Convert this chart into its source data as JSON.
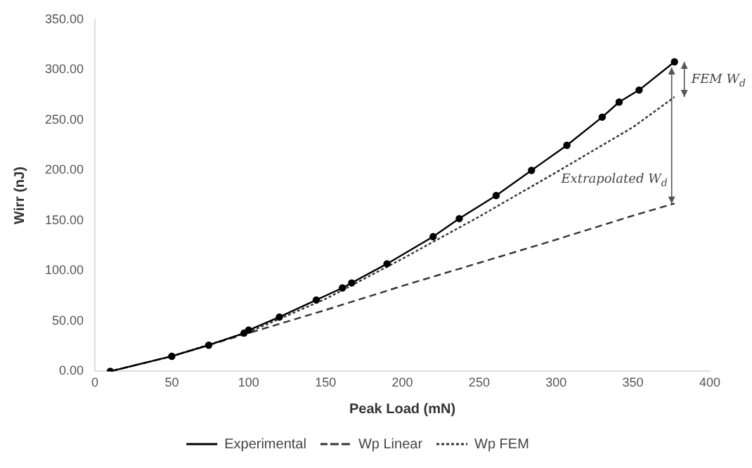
{
  "chart_data": {
    "type": "line",
    "xlabel": "Peak Load (mN)",
    "ylabel": "Wirr (nJ)",
    "xlim": [
      0,
      400
    ],
    "xticks": [
      0,
      50,
      100,
      150,
      200,
      250,
      300,
      350,
      400
    ],
    "ylim": [
      0,
      350
    ],
    "yticks": [
      {
        "value": 0,
        "label": "0.00"
      },
      {
        "value": 50,
        "label": "50.00"
      },
      {
        "value": 100,
        "label": "100.00"
      },
      {
        "value": 150,
        "label": "150.00"
      },
      {
        "value": 200,
        "label": "200.00"
      },
      {
        "value": 250,
        "label": "250.00"
      },
      {
        "value": 300,
        "label": "300.00"
      },
      {
        "value": 350,
        "label": "350.00"
      }
    ],
    "grid": false,
    "legend": "bottom",
    "series": [
      {
        "name": "Experimental",
        "color": "#000000",
        "marker": "circle",
        "line_style": "solid",
        "x": [
          10,
          50,
          74,
          97,
          100,
          120,
          144,
          161,
          167,
          190,
          220,
          237,
          261,
          284,
          307,
          330,
          341,
          354,
          377
        ],
        "values": [
          0,
          15,
          26,
          38,
          41,
          54,
          71,
          83,
          88,
          107,
          134,
          152,
          175,
          200,
          225,
          253,
          268,
          280,
          308
        ]
      },
      {
        "name": "Wp Linear",
        "color": "#333333",
        "marker": "none",
        "line_style": "dashed",
        "x": [
          10,
          50,
          100,
          150,
          200,
          250,
          300,
          350,
          377
        ],
        "values": [
          0,
          15,
          38,
          61,
          85,
          108,
          131,
          155,
          167
        ]
      },
      {
        "name": "Wp FEM",
        "color": "#333333",
        "marker": "none",
        "line_style": "dotted",
        "x": [
          10,
          50,
          100,
          150,
          200,
          250,
          300,
          350,
          377
        ],
        "values": [
          0,
          15,
          39,
          72,
          112,
          154,
          198,
          243,
          273
        ]
      }
    ],
    "annotations": [
      {
        "text": "FEM W$_{d}$",
        "x": 377,
        "y": 273
      },
      {
        "text": "Extrapolated W$_{d}$",
        "x": 377,
        "y": 167
      }
    ]
  }
}
